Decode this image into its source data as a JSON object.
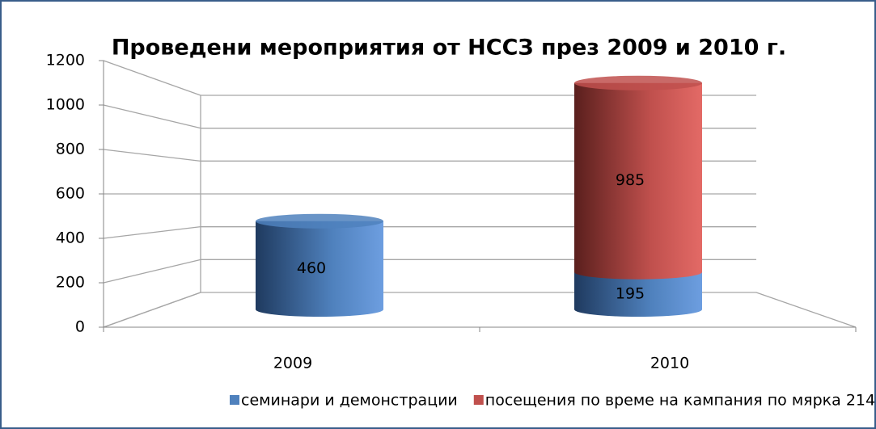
{
  "chart_data": {
    "type": "bar",
    "stacked": true,
    "title": "Проведени мероприятия от НССЗ през 2009 и 2010 г.",
    "categories": [
      "2009",
      "2010"
    ],
    "series": [
      {
        "name": "семинари и демонстрации",
        "color": "#4f81bd",
        "values": [
          460,
          195
        ]
      },
      {
        "name": "посещения по време на кампания по мярка 214",
        "color": "#c0504d",
        "values": [
          null,
          985
        ]
      }
    ],
    "ylim": [
      0,
      1200
    ],
    "yticks": [
      0,
      200,
      400,
      600,
      800,
      1000,
      1200
    ],
    "grid": true,
    "legend": "bottom"
  }
}
